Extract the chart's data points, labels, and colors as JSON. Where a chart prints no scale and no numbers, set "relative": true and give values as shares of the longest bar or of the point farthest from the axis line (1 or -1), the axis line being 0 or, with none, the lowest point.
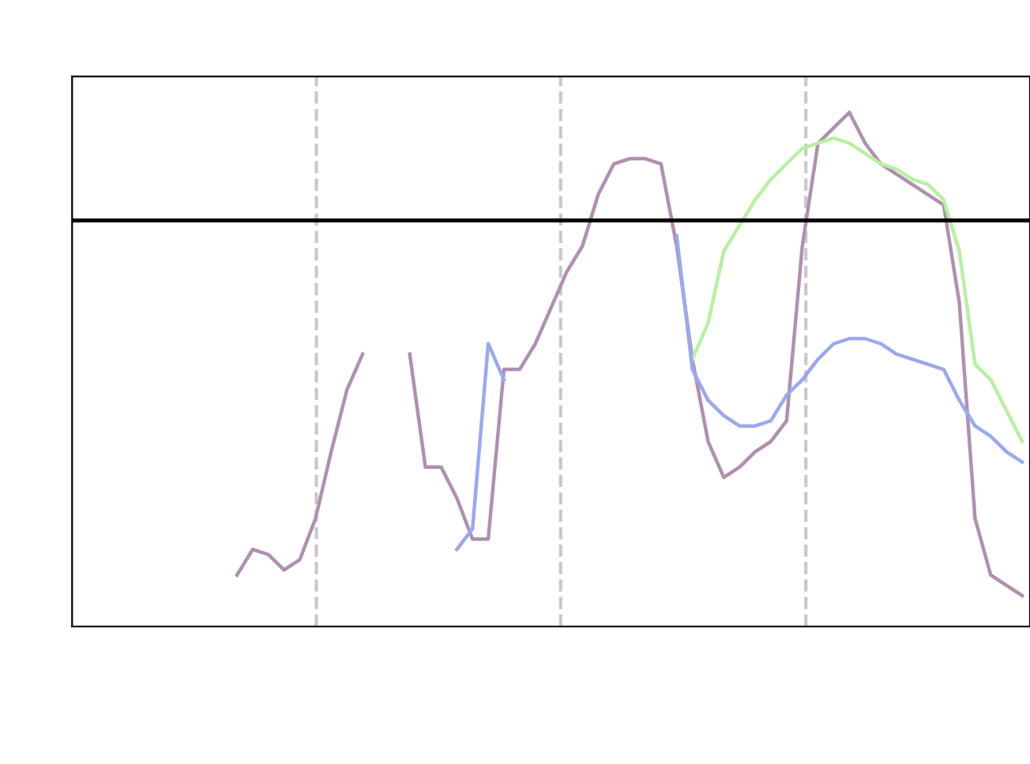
{
  "chart_data": {
    "type": "line",
    "relative": true,
    "grid": false,
    "legend": false,
    "marker": "none",
    "line_style": "solid",
    "categories": [
      null,
      null,
      null,
      null,
      null,
      null,
      null,
      null,
      null,
      null,
      null,
      null,
      null,
      null,
      null,
      null,
      null,
      null,
      null,
      null,
      null,
      null,
      null,
      null,
      null,
      null,
      null,
      null,
      null,
      null,
      null,
      null,
      null,
      null,
      null,
      null,
      null,
      null,
      null,
      null,
      null,
      null,
      null,
      null,
      null,
      null,
      null,
      null,
      null,
      null,
      null,
      null,
      null,
      null,
      null,
      null,
      null,
      null,
      null,
      null,
      null
    ],
    "series": [
      {
        "color": "#b08fb0",
        "values": [
          null,
          null,
          null,
          null,
          null,
          null,
          null,
          null,
          null,
          null,
          0.1,
          0.15,
          0.14,
          0.11,
          0.13,
          0.21,
          0.34,
          0.46,
          0.53,
          null,
          null,
          0.53,
          0.31,
          0.31,
          0.25,
          0.17,
          0.17,
          0.5,
          0.5,
          0.55,
          0.62,
          0.69,
          0.74,
          0.84,
          0.9,
          0.91,
          0.91,
          0.9,
          0.74,
          0.52,
          0.36,
          0.29,
          0.31,
          0.34,
          0.36,
          0.4,
          0.74,
          0.94,
          0.97,
          1,
          0.94,
          0.9,
          0.88,
          0.86,
          0.84,
          0.82,
          0.63,
          0.21,
          0.1,
          0.08,
          0.06
        ]
      },
      {
        "color": "#b8f0a0",
        "values": [
          null,
          null,
          null,
          null,
          null,
          null,
          null,
          null,
          null,
          null,
          null,
          null,
          null,
          null,
          null,
          null,
          null,
          null,
          null,
          null,
          null,
          null,
          null,
          null,
          null,
          null,
          null,
          null,
          null,
          null,
          null,
          null,
          null,
          null,
          null,
          null,
          null,
          null,
          null,
          0.52,
          0.59,
          0.73,
          0.78,
          0.83,
          0.87,
          0.9,
          0.93,
          0.94,
          0.95,
          0.94,
          0.92,
          0.9,
          0.89,
          0.87,
          0.86,
          0.83,
          0.73,
          0.51,
          0.48,
          0.42,
          0.36
        ]
      },
      {
        "color": "#9aa8f0",
        "values": [
          null,
          null,
          null,
          null,
          null,
          null,
          null,
          null,
          null,
          null,
          null,
          null,
          null,
          null,
          null,
          null,
          null,
          null,
          null,
          null,
          null,
          null,
          null,
          null,
          0.15,
          0.19,
          0.55,
          0.48,
          null,
          null,
          null,
          null,
          null,
          null,
          null,
          null,
          null,
          null,
          0.76,
          0.5,
          0.44,
          0.41,
          0.39,
          0.39,
          0.4,
          0.45,
          0.48,
          0.52,
          0.55,
          0.56,
          0.56,
          0.55,
          0.53,
          0.52,
          0.51,
          0.5,
          0.44,
          0.39,
          0.37,
          0.34,
          0.32
        ]
      }
    ],
    "ref_lines": [
      {
        "axis": "y",
        "value": 0.79,
        "color": "#000000",
        "line_style": "solid"
      }
    ]
  }
}
